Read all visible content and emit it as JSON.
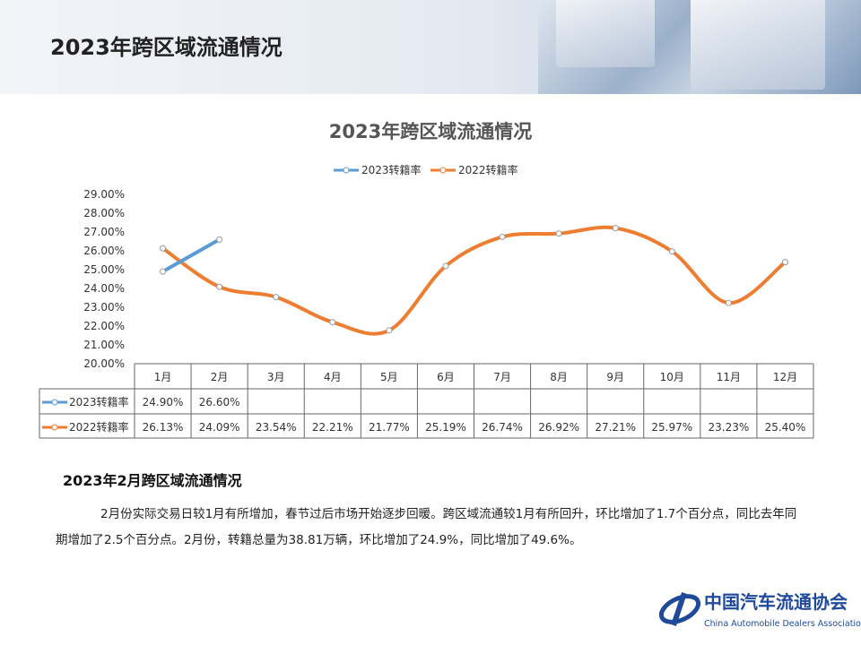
{
  "page": {
    "title": "2023年跨区域流通情况"
  },
  "chart_data": {
    "type": "line",
    "title": "2023年跨区域流通情况",
    "categories": [
      "1月",
      "2月",
      "3月",
      "4月",
      "5月",
      "6月",
      "7月",
      "8月",
      "9月",
      "10月",
      "11月",
      "12月"
    ],
    "series": [
      {
        "name": "2023转籍率",
        "color": "#5b9bd5",
        "values": [
          24.9,
          26.6,
          null,
          null,
          null,
          null,
          null,
          null,
          null,
          null,
          null,
          null
        ],
        "labels": [
          "24.90%",
          "26.60%",
          "",
          "",
          "",
          "",
          "",
          "",
          "",
          "",
          "",
          ""
        ]
      },
      {
        "name": "2022转籍率",
        "color": "#ed7d31",
        "values": [
          26.13,
          24.09,
          23.54,
          22.21,
          21.77,
          25.19,
          26.74,
          26.92,
          27.21,
          25.97,
          23.23,
          25.4
        ],
        "labels": [
          "26.13%",
          "24.09%",
          "23.54%",
          "22.21%",
          "21.77%",
          "25.19%",
          "26.74%",
          "26.92%",
          "27.21%",
          "25.97%",
          "23.23%",
          "25.40%"
        ]
      }
    ],
    "ylim": [
      20,
      29
    ],
    "yticks": [
      "20.00%",
      "21.00%",
      "22.00%",
      "23.00%",
      "24.00%",
      "25.00%",
      "26.00%",
      "27.00%",
      "28.00%",
      "29.00%"
    ],
    "legend": "top",
    "data_table": true,
    "smooth": true
  },
  "section": {
    "title": "2023年2月跨区域流通情况",
    "text": "2月份实际交易日较1月有所增加，春节过后市场开始逐步回暖。跨区域流通较1月有所回升，环比增加了1.7个百分点，同比去年同期增加了2.5个百分点。2月份，转籍总量为38.81万辆，环比增加了24.9%，同比增加了49.6%。"
  },
  "logo": {
    "cn": "中国汽车流通协会",
    "en": "China Automobile Dealers Association",
    "mark": "CADA"
  }
}
